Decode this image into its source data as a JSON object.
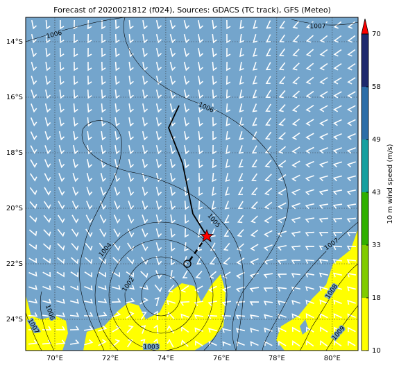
{
  "title": "Forecast of 2020021812 (f024), Sources: GDACS (TC track), GFS (Meteo)",
  "map": {
    "xlim": [
      68.95,
      80.93
    ],
    "ylim": [
      -25.125,
      -13.125
    ],
    "xticks": [
      {
        "value": 70,
        "label": "70°E"
      },
      {
        "value": 72,
        "label": "72°E"
      },
      {
        "value": 74,
        "label": "74°E"
      },
      {
        "value": 76,
        "label": "76°E"
      },
      {
        "value": 78,
        "label": "78°E"
      },
      {
        "value": 80,
        "label": "80°E"
      }
    ],
    "yticks": [
      {
        "value": -14,
        "label": "14°S"
      },
      {
        "value": -16,
        "label": "16°S"
      },
      {
        "value": -18,
        "label": "18°S"
      },
      {
        "value": -20,
        "label": "20°S"
      },
      {
        "value": -22,
        "label": "22°S"
      },
      {
        "value": -24,
        "label": "24°S"
      }
    ],
    "grid": true,
    "ocean_color": "#74a5cc",
    "contour_labels": [
      "1006",
      "1007",
      "1006",
      "1005",
      "1004",
      "1007",
      "1002",
      "1008",
      "1006",
      "1007",
      "1009",
      "1003"
    ]
  },
  "colorbar": {
    "label": "10 m wind speed (m/s)",
    "levels": [
      10,
      18,
      33,
      43,
      49,
      58,
      70
    ],
    "colors": [
      "#ffff00",
      "#80cc00",
      "#2fb000",
      "#16a0a0",
      "#2c6ea8",
      "#1f2a6e"
    ],
    "extend_color": "#ff0000"
  }
}
